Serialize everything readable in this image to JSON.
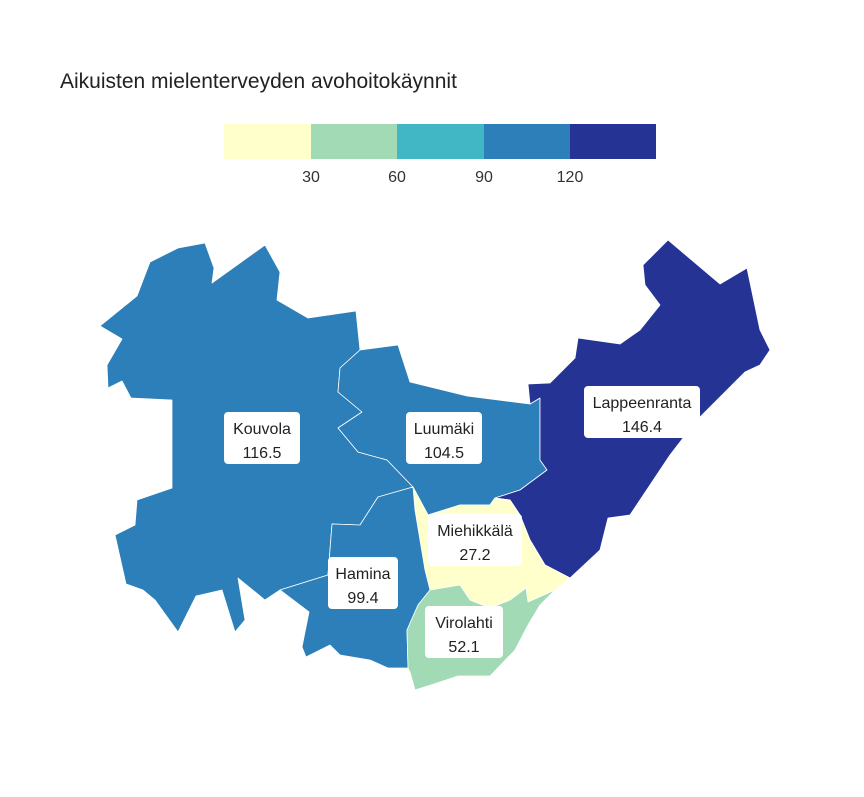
{
  "title": "Aikuisten mielenterveyden avohoitokäynnit",
  "legend": {
    "colors": [
      "#ffffcc",
      "#a1dab4",
      "#41b6c4",
      "#2c7fb8",
      "#253494"
    ],
    "ticks": [
      "30",
      "60",
      "90",
      "120"
    ]
  },
  "regions": [
    {
      "id": "kouvola",
      "name": "Kouvola",
      "value": "116.5",
      "color": "#2c7fb8"
    },
    {
      "id": "luumaki",
      "name": "Luumäki",
      "value": "104.5",
      "color": "#2c7fb8"
    },
    {
      "id": "lappeenranta",
      "name": "Lappeenranta",
      "value": "146.4",
      "color": "#253494"
    },
    {
      "id": "miehikkala",
      "name": "Miehikkälä",
      "value": "27.2",
      "color": "#ffffcc"
    },
    {
      "id": "hamina",
      "name": "Hamina",
      "value": "99.4",
      "color": "#2c7fb8"
    },
    {
      "id": "virolahti",
      "name": "Virolahti",
      "value": "52.1",
      "color": "#a1dab4"
    }
  ]
}
